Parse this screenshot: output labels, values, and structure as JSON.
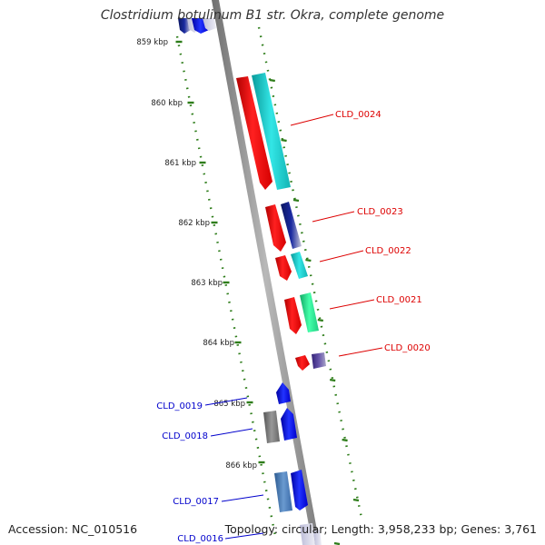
{
  "title": "Clostridium botulinum B1 str. Okra, complete genome",
  "footer": {
    "accession": "Accession: NC_010516",
    "summary": "Topology: circular; Length: 3,958,233 bp; Genes: 3,761"
  },
  "ruler": [
    {
      "label": "859 kbp"
    },
    {
      "label": "860 kbp"
    },
    {
      "label": "861 kbp"
    },
    {
      "label": "862 kbp"
    },
    {
      "label": "863 kbp"
    },
    {
      "label": "864 kbp"
    },
    {
      "label": "865 kbp"
    },
    {
      "label": "866 kbp"
    }
  ],
  "genes": [
    {
      "label": "CLD_0024",
      "color": "#dd0000",
      "side": "right"
    },
    {
      "label": "CLD_0023",
      "color": "#dd0000",
      "side": "right"
    },
    {
      "label": "CLD_0022",
      "color": "#dd0000",
      "side": "right"
    },
    {
      "label": "CLD_0021",
      "color": "#dd0000",
      "side": "right"
    },
    {
      "label": "CLD_0020",
      "color": "#dd0000",
      "side": "right"
    },
    {
      "label": "CLD_0019",
      "color": "#0000cc",
      "side": "left"
    },
    {
      "label": "CLD_0018",
      "color": "#0000cc",
      "side": "left"
    },
    {
      "label": "CLD_0017",
      "color": "#0000cc",
      "side": "left"
    },
    {
      "label": "CLD_0016",
      "color": "#0000cc",
      "side": "left"
    }
  ],
  "colors": {
    "backbone": "#8c8c8c",
    "ruler": "#2e7d1a",
    "forward_feature": "#ee1111",
    "reverse_feature": "#1111ee",
    "cyan_feature": "#18c8c8",
    "green_feature": "#22dd88",
    "navy_feature": "#102080",
    "purple_feature": "#554499",
    "gray_feature": "#777777",
    "steel_feature": "#4477bb"
  }
}
